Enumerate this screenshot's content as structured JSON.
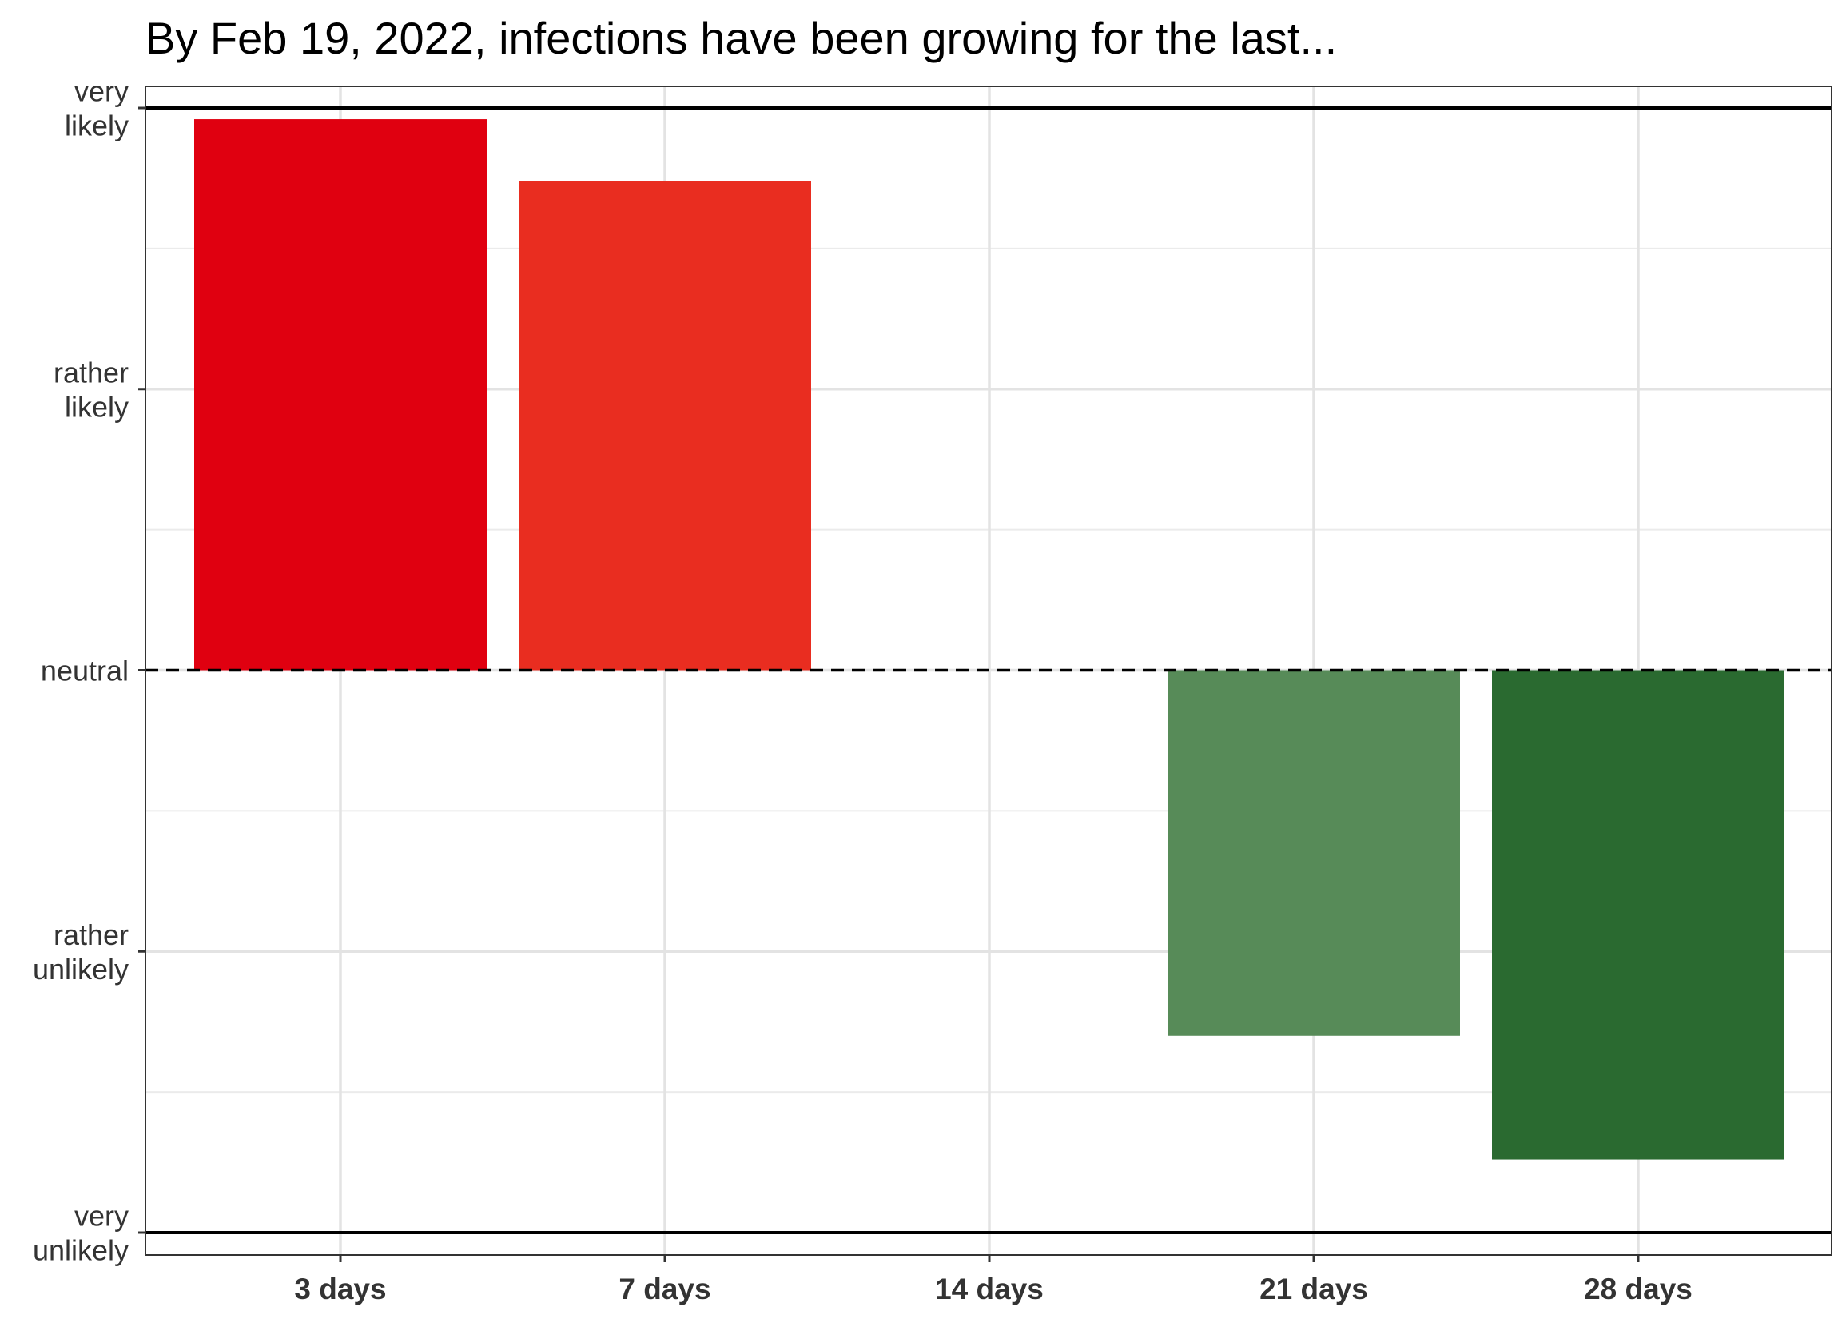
{
  "chart_data": {
    "type": "bar",
    "title": "By Feb 19, 2022, infections have been growing for the last...",
    "xlabel": "",
    "ylabel": "",
    "categories": [
      "3 days",
      "7 days",
      "14 days",
      "21 days",
      "28 days"
    ],
    "values": [
      0.98,
      0.87,
      0.0,
      -0.65,
      -0.87
    ],
    "colors": [
      "#e00010",
      "#e92d20",
      "#ffffff",
      "#578b58",
      "#2a6a30"
    ],
    "ylim": [
      -1.05,
      1.0
    ],
    "yticks": [
      {
        "value": 1.0,
        "label": [
          "very",
          "likely"
        ]
      },
      {
        "value": 0.5,
        "label": [
          "rather",
          "likely"
        ]
      },
      {
        "value": 0.0,
        "label": [
          "neutral"
        ]
      },
      {
        "value": -0.5,
        "label": [
          "rather",
          "unlikely"
        ]
      },
      {
        "value": -1.0,
        "label": [
          "very",
          "unlikely"
        ]
      }
    ],
    "minor_gridlines": [
      0.75,
      0.25,
      -0.25,
      -0.75
    ],
    "reference_lines": [
      {
        "value": 1.0,
        "style": "solid"
      },
      {
        "value": 0.0,
        "style": "dashed"
      },
      {
        "value": -1.0,
        "style": "solid"
      }
    ],
    "grid": true,
    "legend": "none"
  }
}
